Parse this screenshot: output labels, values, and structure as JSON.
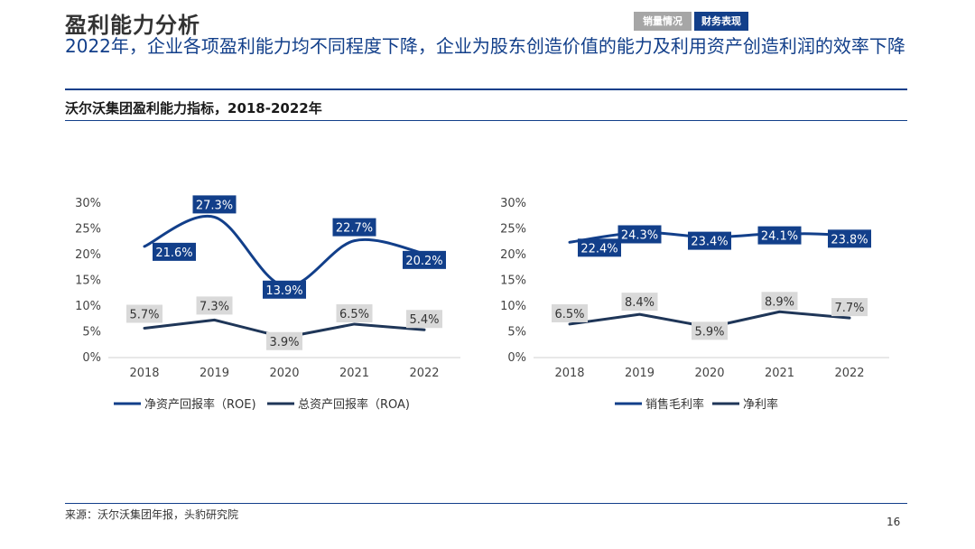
{
  "header": {
    "section_title": "盈利能力分析",
    "tabs": [
      "销量情况",
      "财务表现"
    ],
    "headline": "2022年，企业各项盈利能力均不同程度下降，企业为股东创造价值的能力及利用资产创造利润的效率下降"
  },
  "chart_heading": "沃尔沃集团盈利能力指标，2018-2022年",
  "footer": {
    "source": "来源：沃尔沃集团年报，头豹研究院",
    "page_number": "16"
  },
  "colors": {
    "primary": "#123f8a",
    "secondary": "#1f3658",
    "muted_label": "#d9d9d9",
    "tab_inactive": "#a6a6a6"
  },
  "chart_data": [
    {
      "type": "line",
      "categories": [
        "2018",
        "2019",
        "2020",
        "2021",
        "2022"
      ],
      "ylim": [
        0,
        30
      ],
      "yticks": [
        "0%",
        "5%",
        "10%",
        "15%",
        "20%",
        "25%",
        "30%"
      ],
      "grid": false,
      "legend_position": "bottom",
      "series": [
        {
          "name": "净资产回报率（ROE)",
          "values": [
            21.6,
            27.3,
            13.9,
            22.7,
            20.2
          ],
          "labels": [
            "21.6%",
            "27.3%",
            "13.9%",
            "22.7%",
            "20.2%"
          ],
          "color": "#123f8a",
          "smooth": true
        },
        {
          "name": "总资产回报率（ROA)",
          "values": [
            5.7,
            7.3,
            3.9,
            6.5,
            5.4
          ],
          "labels": [
            "5.7%",
            "7.3%",
            "3.9%",
            "6.5%",
            "5.4%"
          ],
          "color": "#1f3658",
          "smooth": false
        }
      ]
    },
    {
      "type": "line",
      "categories": [
        "2018",
        "2019",
        "2020",
        "2021",
        "2022"
      ],
      "ylim": [
        0,
        30
      ],
      "yticks": [
        "0%",
        "5%",
        "10%",
        "15%",
        "20%",
        "25%",
        "30%"
      ],
      "grid": false,
      "legend_position": "bottom",
      "series": [
        {
          "name": "销售毛利率",
          "values": [
            22.4,
            24.3,
            23.4,
            24.1,
            23.8
          ],
          "labels": [
            "22.4%",
            "24.3%",
            "23.4%",
            "24.1%",
            "23.8%"
          ],
          "color": "#123f8a",
          "smooth": true
        },
        {
          "name": "净利率",
          "values": [
            6.5,
            8.4,
            5.9,
            8.9,
            7.7
          ],
          "labels": [
            "6.5%",
            "8.4%",
            "5.9%",
            "8.9%",
            "7.7%"
          ],
          "color": "#1f3658",
          "smooth": false
        }
      ]
    }
  ]
}
